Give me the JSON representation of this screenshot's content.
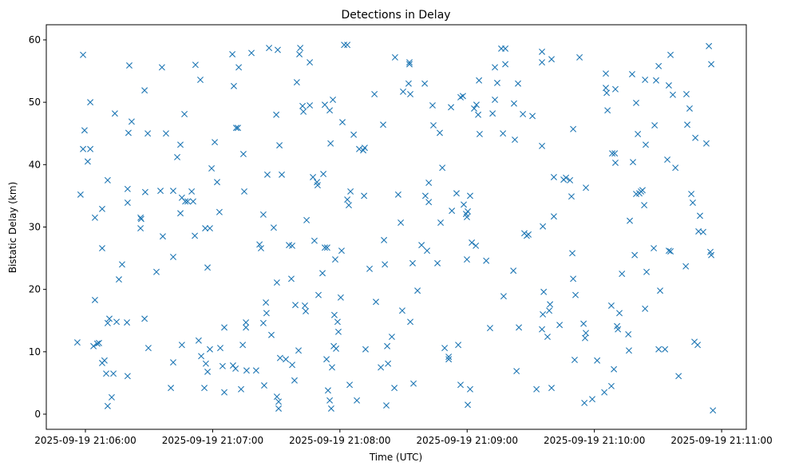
{
  "chart_data": {
    "type": "scatter",
    "title": "Detections in Delay",
    "xlabel": "Time (UTC)",
    "ylabel": "Bistatic Delay (km)",
    "x_units": "seconds after 2025-09-19 21:05:00",
    "xlim": [
      48,
      367
    ],
    "ylim": [
      -2.5,
      62.3
    ],
    "grid": false,
    "marker": "x",
    "color": "#1f77b4",
    "yticks": [
      0,
      10,
      20,
      30,
      40,
      50,
      60
    ],
    "xticks": [
      {
        "value": 60,
        "label": "2025-09-19 21:06:00"
      },
      {
        "value": 120,
        "label": "2025-09-19 21:07:00"
      },
      {
        "value": 180,
        "label": "2025-09-19 21:08:00"
      },
      {
        "value": 240,
        "label": "2025-09-19 21:09:00"
      },
      {
        "value": 300,
        "label": "2025-09-19 21:10:00"
      },
      {
        "value": 360,
        "label": "2025-09-19 21:11:00"
      }
    ],
    "points": [
      [
        56.2,
        11.5
      ],
      [
        57.7,
        35.2
      ],
      [
        58.9,
        57.6
      ],
      [
        58.9,
        42.5
      ],
      [
        59.6,
        45.5
      ],
      [
        61.1,
        40.5
      ],
      [
        62.3,
        50.0
      ],
      [
        62.3,
        42.5
      ],
      [
        63.8,
        10.9
      ],
      [
        64.5,
        18.3
      ],
      [
        64.5,
        31.5
      ],
      [
        65.6,
        11.3
      ],
      [
        66.4,
        11.4
      ],
      [
        67.9,
        26.6
      ],
      [
        67.9,
        32.9
      ],
      [
        67.9,
        8.2
      ],
      [
        69.0,
        8.6
      ],
      [
        69.8,
        6.5
      ],
      [
        70.5,
        37.5
      ],
      [
        70.5,
        14.6
      ],
      [
        70.5,
        1.3
      ],
      [
        71.3,
        15.3
      ],
      [
        72.4,
        2.7
      ],
      [
        73.2,
        6.5
      ],
      [
        73.9,
        48.2
      ],
      [
        74.7,
        14.8
      ],
      [
        75.8,
        21.6
      ],
      [
        77.3,
        24.0
      ],
      [
        79.6,
        14.7
      ],
      [
        79.9,
        36.1
      ],
      [
        79.9,
        33.9
      ],
      [
        79.9,
        6.1
      ],
      [
        80.3,
        45.1
      ],
      [
        80.7,
        55.9
      ],
      [
        81.8,
        46.9
      ],
      [
        86.0,
        31.5
      ],
      [
        86.0,
        29.8
      ],
      [
        86.3,
        31.3
      ],
      [
        87.9,
        51.9
      ],
      [
        87.9,
        15.3
      ],
      [
        88.2,
        35.6
      ],
      [
        89.4,
        45.0
      ],
      [
        89.7,
        10.6
      ],
      [
        93.5,
        22.8
      ],
      [
        95.4,
        35.8
      ],
      [
        96.1,
        55.6
      ],
      [
        96.5,
        28.5
      ],
      [
        98.0,
        45.0
      ],
      [
        100.3,
        4.2
      ],
      [
        101.4,
        25.2
      ],
      [
        101.4,
        8.3
      ],
      [
        101.4,
        35.8
      ],
      [
        103.3,
        41.2
      ],
      [
        104.8,
        32.2
      ],
      [
        104.8,
        43.2
      ],
      [
        105.5,
        11.1
      ],
      [
        105.5,
        34.7
      ],
      [
        106.7,
        48.1
      ],
      [
        107.1,
        34.1
      ],
      [
        108.2,
        34.1
      ],
      [
        110.1,
        35.7
      ],
      [
        110.8,
        34.1
      ],
      [
        111.6,
        28.6
      ],
      [
        111.9,
        56.0
      ],
      [
        113.4,
        11.8
      ],
      [
        114.2,
        53.6
      ],
      [
        114.6,
        9.3
      ],
      [
        116.1,
        4.2
      ],
      [
        116.5,
        29.8
      ],
      [
        116.8,
        8.1
      ],
      [
        117.6,
        23.5
      ],
      [
        117.6,
        6.8
      ],
      [
        118.7,
        29.8
      ],
      [
        118.7,
        10.4
      ],
      [
        119.5,
        39.4
      ],
      [
        121.0,
        43.6
      ],
      [
        122.1,
        37.2
      ],
      [
        123.2,
        32.4
      ],
      [
        123.6,
        10.6
      ],
      [
        124.7,
        7.7
      ],
      [
        125.5,
        13.9
      ],
      [
        125.5,
        3.5
      ],
      [
        129.3,
        57.7
      ],
      [
        129.6,
        7.8
      ],
      [
        130.0,
        52.6
      ],
      [
        130.8,
        7.3
      ],
      [
        131.1,
        45.9
      ],
      [
        131.9,
        45.9
      ],
      [
        132.3,
        55.6
      ],
      [
        133.4,
        4.0
      ],
      [
        134.2,
        11.1
      ],
      [
        134.5,
        41.7
      ],
      [
        134.9,
        35.7
      ],
      [
        135.7,
        14.7
      ],
      [
        135.7,
        13.9
      ],
      [
        136.0,
        7.0
      ],
      [
        138.3,
        57.9
      ],
      [
        140.5,
        7.0
      ],
      [
        142.1,
        27.2
      ],
      [
        142.8,
        26.6
      ],
      [
        143.9,
        32.0
      ],
      [
        143.9,
        14.6
      ],
      [
        144.3,
        4.6
      ],
      [
        145.1,
        17.9
      ],
      [
        145.4,
        16.2
      ],
      [
        145.8,
        38.4
      ],
      [
        146.6,
        58.7
      ],
      [
        147.7,
        12.7
      ],
      [
        148.8,
        29.9
      ],
      [
        150.0,
        48.0
      ],
      [
        150.3,
        21.1
      ],
      [
        150.3,
        2.8
      ],
      [
        150.7,
        58.4
      ],
      [
        151.1,
        0.9
      ],
      [
        151.1,
        2.0
      ],
      [
        151.5,
        43.1
      ],
      [
        151.8,
        9.0
      ],
      [
        152.6,
        38.4
      ],
      [
        154.5,
        8.8
      ],
      [
        156.0,
        27.1
      ],
      [
        157.1,
        21.7
      ],
      [
        157.5,
        7.9
      ],
      [
        157.5,
        27.0
      ],
      [
        158.6,
        5.4
      ],
      [
        159.0,
        17.5
      ],
      [
        159.7,
        53.2
      ],
      [
        160.5,
        10.2
      ],
      [
        160.9,
        57.7
      ],
      [
        161.3,
        58.7
      ],
      [
        162.4,
        49.4
      ],
      [
        162.8,
        48.5
      ],
      [
        163.5,
        17.4
      ],
      [
        163.9,
        16.5
      ],
      [
        164.3,
        31.1
      ],
      [
        165.8,
        56.4
      ],
      [
        165.8,
        49.5
      ],
      [
        167.3,
        38.0
      ],
      [
        168.0,
        27.8
      ],
      [
        169.2,
        37.2
      ],
      [
        169.5,
        36.7
      ],
      [
        169.9,
        19.1
      ],
      [
        171.8,
        22.6
      ],
      [
        172.2,
        38.5
      ],
      [
        172.9,
        49.6
      ],
      [
        172.9,
        26.7
      ],
      [
        173.7,
        8.8
      ],
      [
        174.0,
        26.7
      ],
      [
        174.4,
        3.8
      ],
      [
        175.2,
        2.2
      ],
      [
        175.2,
        48.7
      ],
      [
        175.6,
        43.4
      ],
      [
        175.9,
        0.9
      ],
      [
        176.3,
        7.5
      ],
      [
        176.7,
        50.4
      ],
      [
        177.1,
        10.9
      ],
      [
        177.4,
        15.9
      ],
      [
        177.8,
        24.8
      ],
      [
        178.2,
        10.5
      ],
      [
        178.9,
        14.8
      ],
      [
        179.3,
        13.2
      ],
      [
        180.4,
        18.7
      ],
      [
        180.8,
        26.2
      ],
      [
        181.2,
        46.8
      ],
      [
        182.0,
        59.2
      ],
      [
        183.5,
        59.2
      ],
      [
        183.5,
        34.4
      ],
      [
        184.2,
        33.5
      ],
      [
        184.6,
        4.7
      ],
      [
        185.0,
        35.7
      ],
      [
        186.5,
        44.8
      ],
      [
        188.0,
        2.2
      ],
      [
        189.1,
        42.5
      ],
      [
        191.0,
        42.3
      ],
      [
        191.4,
        35.0
      ],
      [
        191.7,
        42.7
      ],
      [
        192.1,
        10.4
      ],
      [
        194.0,
        23.3
      ],
      [
        196.3,
        51.3
      ],
      [
        197.0,
        18.0
      ],
      [
        199.3,
        7.5
      ],
      [
        200.4,
        46.4
      ],
      [
        200.8,
        27.9
      ],
      [
        201.2,
        24.0
      ],
      [
        201.9,
        1.4
      ],
      [
        202.3,
        10.9
      ],
      [
        202.7,
        8.1
      ],
      [
        204.5,
        12.4
      ],
      [
        205.7,
        4.2
      ],
      [
        206.0,
        57.2
      ],
      [
        207.5,
        35.2
      ],
      [
        208.7,
        30.7
      ],
      [
        209.4,
        16.6
      ],
      [
        209.8,
        51.7
      ],
      [
        212.4,
        53.0
      ],
      [
        212.8,
        56.4
      ],
      [
        212.8,
        56.1
      ],
      [
        213.2,
        14.8
      ],
      [
        213.2,
        51.3
      ],
      [
        214.3,
        24.2
      ],
      [
        214.7,
        4.9
      ],
      [
        216.6,
        19.8
      ],
      [
        218.5,
        27.1
      ],
      [
        220.0,
        53.0
      ],
      [
        220.3,
        35.0
      ],
      [
        221.1,
        26.2
      ],
      [
        221.9,
        37.1
      ],
      [
        221.9,
        34.0
      ],
      [
        223.7,
        49.5
      ],
      [
        224.1,
        46.3
      ],
      [
        226.0,
        24.2
      ],
      [
        227.1,
        45.1
      ],
      [
        227.5,
        30.7
      ],
      [
        228.3,
        39.5
      ],
      [
        229.4,
        10.6
      ],
      [
        231.3,
        9.2
      ],
      [
        231.3,
        8.8
      ],
      [
        232.4,
        49.2
      ],
      [
        232.8,
        32.6
      ],
      [
        235.0,
        35.4
      ],
      [
        235.8,
        11.1
      ],
      [
        236.9,
        4.7
      ],
      [
        236.9,
        50.8
      ],
      [
        238.0,
        51.0
      ],
      [
        238.4,
        33.6
      ],
      [
        239.5,
        32.1
      ],
      [
        239.9,
        24.8
      ],
      [
        239.9,
        31.6
      ],
      [
        240.3,
        32.5
      ],
      [
        240.3,
        1.5
      ],
      [
        241.4,
        35.0
      ],
      [
        241.4,
        4.0
      ],
      [
        242.2,
        27.5
      ],
      [
        243.3,
        49.0
      ],
      [
        244.1,
        27.0
      ],
      [
        244.4,
        49.6
      ],
      [
        245.2,
        48.0
      ],
      [
        245.6,
        53.5
      ],
      [
        245.9,
        44.9
      ],
      [
        249.0,
        24.6
      ],
      [
        250.8,
        13.8
      ],
      [
        252.0,
        48.2
      ],
      [
        253.1,
        55.6
      ],
      [
        253.1,
        50.4
      ],
      [
        254.2,
        53.1
      ],
      [
        256.1,
        58.6
      ],
      [
        256.9,
        45.0
      ],
      [
        257.2,
        18.9
      ],
      [
        258.0,
        58.6
      ],
      [
        258.0,
        56.1
      ],
      [
        261.8,
        23.0
      ],
      [
        262.1,
        49.8
      ],
      [
        262.5,
        44.0
      ],
      [
        263.3,
        6.9
      ],
      [
        264.0,
        53.0
      ],
      [
        264.4,
        13.9
      ],
      [
        266.3,
        48.1
      ],
      [
        267.0,
        29.0
      ],
      [
        268.1,
        28.6
      ],
      [
        268.9,
        28.8
      ],
      [
        270.8,
        47.8
      ],
      [
        272.7,
        4.0
      ],
      [
        275.3,
        58.1
      ],
      [
        275.3,
        56.4
      ],
      [
        275.3,
        13.6
      ],
      [
        275.3,
        43.0
      ],
      [
        275.7,
        16.0
      ],
      [
        275.7,
        30.1
      ],
      [
        276.1,
        19.6
      ],
      [
        277.9,
        12.4
      ],
      [
        278.7,
        16.6
      ],
      [
        279.1,
        17.6
      ],
      [
        279.8,
        4.2
      ],
      [
        279.8,
        56.9
      ],
      [
        280.9,
        31.7
      ],
      [
        280.9,
        38.0
      ],
      [
        283.6,
        14.3
      ],
      [
        285.5,
        37.6
      ],
      [
        286.6,
        37.9
      ],
      [
        288.5,
        37.5
      ],
      [
        289.2,
        34.9
      ],
      [
        289.6,
        25.8
      ],
      [
        290.0,
        21.7
      ],
      [
        290.0,
        45.7
      ],
      [
        290.7,
        8.7
      ],
      [
        291.1,
        19.1
      ],
      [
        293.0,
        57.2
      ],
      [
        294.9,
        14.5
      ],
      [
        295.3,
        1.8
      ],
      [
        295.6,
        12.2
      ],
      [
        296.0,
        13.0
      ],
      [
        296.0,
        36.3
      ],
      [
        299.0,
        2.4
      ],
      [
        301.3,
        8.6
      ],
      [
        304.7,
        3.5
      ],
      [
        305.4,
        54.6
      ],
      [
        305.4,
        52.3
      ],
      [
        305.8,
        51.5
      ],
      [
        306.2,
        48.7
      ],
      [
        308.0,
        4.5
      ],
      [
        308.0,
        17.4
      ],
      [
        308.4,
        41.8
      ],
      [
        309.2,
        7.2
      ],
      [
        309.6,
        41.8
      ],
      [
        309.9,
        52.1
      ],
      [
        309.9,
        40.3
      ],
      [
        310.7,
        14.1
      ],
      [
        311.1,
        13.6
      ],
      [
        311.8,
        16.2
      ],
      [
        313.0,
        22.5
      ],
      [
        316.0,
        12.8
      ],
      [
        316.3,
        10.2
      ],
      [
        316.7,
        31.0
      ],
      [
        317.8,
        54.5
      ],
      [
        318.2,
        40.4
      ],
      [
        319.0,
        25.5
      ],
      [
        319.7,
        49.9
      ],
      [
        319.7,
        35.3
      ],
      [
        320.5,
        44.9
      ],
      [
        321.2,
        35.4
      ],
      [
        322.0,
        35.7
      ],
      [
        322.7,
        35.9
      ],
      [
        323.5,
        33.5
      ],
      [
        323.9,
        16.9
      ],
      [
        323.9,
        53.6
      ],
      [
        324.2,
        43.2
      ],
      [
        324.6,
        22.8
      ],
      [
        328.0,
        26.6
      ],
      [
        328.4,
        46.3
      ],
      [
        329.1,
        53.5
      ],
      [
        330.3,
        10.4
      ],
      [
        330.3,
        55.8
      ],
      [
        331.0,
        19.8
      ],
      [
        333.3,
        10.4
      ],
      [
        334.4,
        40.8
      ],
      [
        335.1,
        26.2
      ],
      [
        335.1,
        52.7
      ],
      [
        335.9,
        57.6
      ],
      [
        335.9,
        26.1
      ],
      [
        337.0,
        51.2
      ],
      [
        338.2,
        39.5
      ],
      [
        339.7,
        6.1
      ],
      [
        343.1,
        23.7
      ],
      [
        343.4,
        51.3
      ],
      [
        343.8,
        46.4
      ],
      [
        344.9,
        49.0
      ],
      [
        345.7,
        35.3
      ],
      [
        346.4,
        33.9
      ],
      [
        347.2,
        11.6
      ],
      [
        347.6,
        44.3
      ],
      [
        348.7,
        11.1
      ],
      [
        349.1,
        29.3
      ],
      [
        349.8,
        31.8
      ],
      [
        351.3,
        29.2
      ],
      [
        352.8,
        43.4
      ],
      [
        354.0,
        59.0
      ],
      [
        354.7,
        26.0
      ],
      [
        355.1,
        25.5
      ],
      [
        355.1,
        56.1
      ],
      [
        355.9,
        0.6
      ]
    ]
  }
}
